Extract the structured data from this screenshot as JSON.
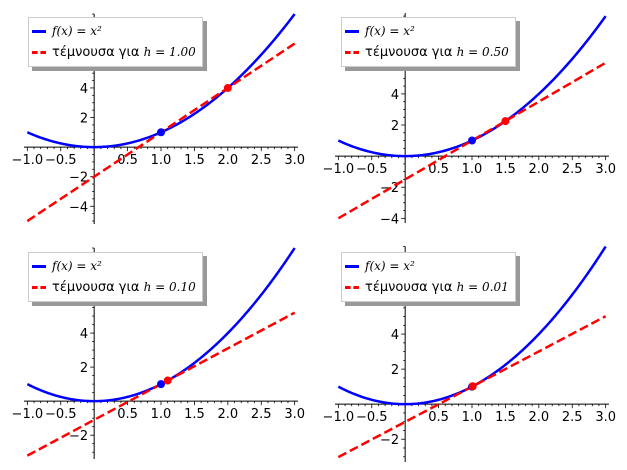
{
  "chart_data": [
    {
      "type": "line",
      "function": "x^2",
      "h": 1.0,
      "xlim": [
        -1.05,
        3.05
      ],
      "ylim": [
        -5.2,
        9
      ],
      "xticks": [
        "−1.0",
        "−0.5",
        "0.5",
        "1.0",
        "1.5",
        "2.0",
        "2.5",
        "3.0"
      ],
      "yticks": [
        "−4",
        "−2",
        "2",
        "4"
      ],
      "legend": {
        "f_label": "f(x) = x²",
        "secant_label": "τέμνουσα για",
        "h_label": "h = 1.00",
        "placement": "top-left"
      },
      "points": [
        {
          "x": 1,
          "y": 1,
          "color": "#0000ff"
        },
        {
          "x": 2,
          "y": 4,
          "color": "#ff0000"
        }
      ]
    },
    {
      "type": "line",
      "function": "x^2",
      "h": 0.5,
      "xlim": [
        -1.05,
        3.05
      ],
      "ylim": [
        -4.3,
        9.2
      ],
      "xticks": [
        "−1.0",
        "−0.5",
        "0.5",
        "1.0",
        "1.5",
        "2.0",
        "2.5",
        "3.0"
      ],
      "yticks": [
        "−4",
        "−2",
        "2",
        "4"
      ],
      "legend": {
        "f_label": "f(x) = x²",
        "secant_label": "τέμνουσα για",
        "h_label": "h = 0.50",
        "placement": "top-left"
      },
      "points": [
        {
          "x": 1,
          "y": 1,
          "color": "#0000ff"
        },
        {
          "x": 1.5,
          "y": 2.25,
          "color": "#ff0000"
        }
      ]
    },
    {
      "type": "line",
      "function": "x^2",
      "h": 0.1,
      "xlim": [
        -1.05,
        3.05
      ],
      "ylim": [
        -3.4,
        9
      ],
      "xticks": [
        "−1.0",
        "−0.5",
        "0.5",
        "1.0",
        "1.5",
        "2.0",
        "2.5",
        "3.0"
      ],
      "yticks": [
        "−2",
        "2",
        "4"
      ],
      "legend": {
        "f_label": "f(x) = x²",
        "secant_label": "τέμνουσα για",
        "h_label": "h = 0.10",
        "placement": "top-left"
      },
      "points": [
        {
          "x": 1,
          "y": 1,
          "color": "#0000ff"
        },
        {
          "x": 1.1,
          "y": 1.21,
          "color": "#ff0000"
        }
      ]
    },
    {
      "type": "line",
      "function": "x^2",
      "h": 0.01,
      "xlim": [
        -1.05,
        3.05
      ],
      "ylim": [
        -3.3,
        9
      ],
      "xticks": [
        "−1.0",
        "−0.5",
        "0.5",
        "1.0",
        "1.5",
        "2.0",
        "2.5",
        "3.0"
      ],
      "yticks": [
        "−2",
        "2",
        "4"
      ],
      "legend": {
        "f_label": "f(x) = x²",
        "secant_label": "τέμνουσα για",
        "h_label": "h = 0.01",
        "placement": "top-left"
      },
      "points": [
        {
          "x": 1,
          "y": 1,
          "color": "#0000ff"
        },
        {
          "x": 1.01,
          "y": 1.0201,
          "color": "#ff0000"
        }
      ]
    }
  ],
  "colors": {
    "curve": "#0000ff",
    "secant": "#ff0000"
  }
}
